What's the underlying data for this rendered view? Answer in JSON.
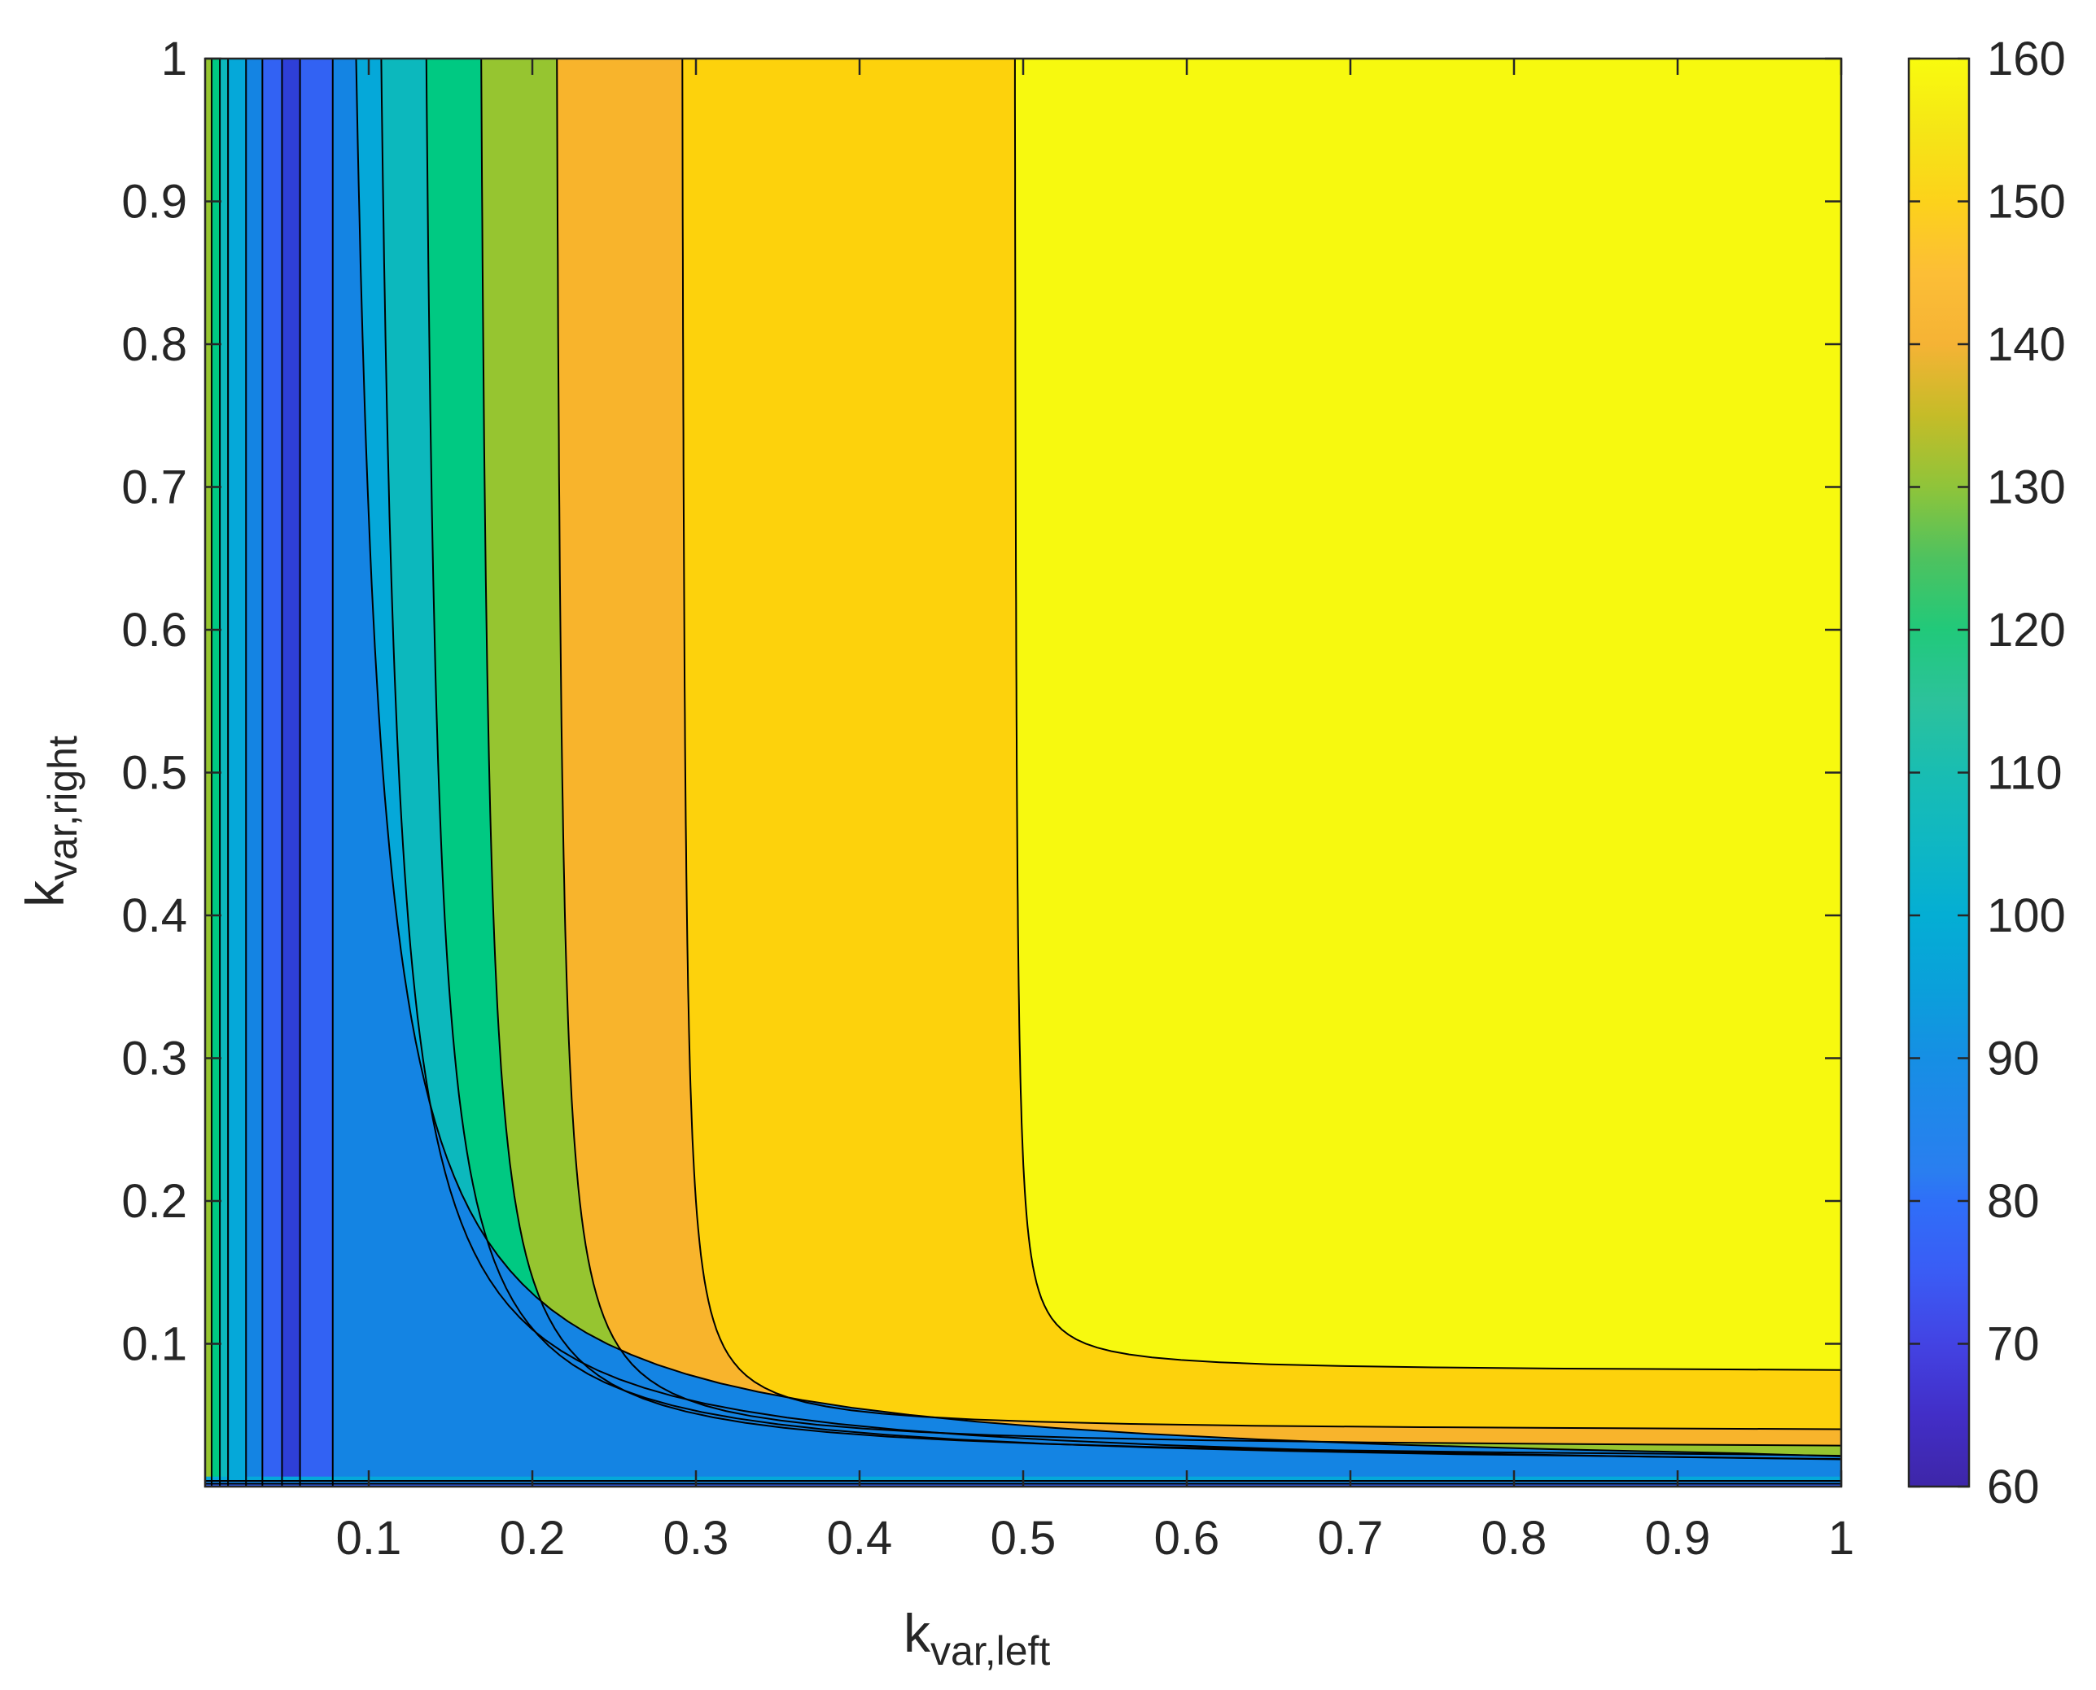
{
  "chart_data": {
    "type": "contour",
    "title": "",
    "xlabel": {
      "base": "k",
      "sub": "var,left"
    },
    "ylabel": {
      "base": "k",
      "sub": "var,right"
    },
    "xlim": [
      0,
      1
    ],
    "ylim": [
      0,
      1
    ],
    "xticks": [
      0.1,
      0.2,
      0.3,
      0.4,
      0.5,
      0.6,
      0.7,
      0.8,
      0.9,
      1
    ],
    "xtick_labels": [
      "0.1",
      "0.2",
      "0.3",
      "0.4",
      "0.5",
      "0.6",
      "0.7",
      "0.8",
      "0.9",
      "1"
    ],
    "yticks": [
      0.1,
      0.2,
      0.3,
      0.4,
      0.5,
      0.6,
      0.7,
      0.8,
      0.9,
      1
    ],
    "ytick_labels": [
      "0.1",
      "0.2",
      "0.3",
      "0.4",
      "0.5",
      "0.6",
      "0.7",
      "0.8",
      "0.9",
      "1"
    ],
    "colorbar": {
      "limits": [
        60,
        160
      ],
      "ticks": [
        60,
        70,
        80,
        90,
        100,
        110,
        120,
        130,
        140,
        150,
        160
      ],
      "tick_labels": [
        "60",
        "70",
        "80",
        "90",
        "100",
        "110",
        "120",
        "130",
        "140",
        "150",
        "160"
      ],
      "colormap": "parula"
    },
    "contour_levels": [
      70,
      80,
      90,
      100,
      110,
      120,
      130,
      140,
      150
    ],
    "vertical_level_positions_at_top": [
      {
        "x": 0.004,
        "value": 130
      },
      {
        "x": 0.009,
        "value": 120
      },
      {
        "x": 0.014,
        "value": 110
      },
      {
        "x": 0.025,
        "value": 100
      },
      {
        "x": 0.035,
        "value": 90
      },
      {
        "x": 0.047,
        "value": 80
      },
      {
        "x": 0.058,
        "value": 70
      },
      {
        "x": 0.078,
        "value": 80
      },
      {
        "x": 0.1,
        "value": 90
      },
      {
        "x": 0.13,
        "value": 100
      },
      {
        "x": 0.167,
        "value": 110
      },
      {
        "x": 0.215,
        "value": 120
      },
      {
        "x": 0.296,
        "value": 130
      },
      {
        "x": 0.499,
        "value": 140
      }
    ],
    "horizontal_asymptotes_at_x1": [
      {
        "y": 0.083,
        "value": 150
      },
      {
        "y": 0.04,
        "value": 140
      },
      {
        "y": 0.026,
        "value": 130
      },
      {
        "y": 0.017,
        "value": 120
      },
      {
        "y": 0.011,
        "value": 110
      },
      {
        "y": 0.007,
        "value": 100
      },
      {
        "y": 0.004,
        "value": 90
      },
      {
        "y": 0.002,
        "value": 80
      }
    ],
    "band_colors": [
      "#2e3fd7",
      "#3262f3",
      "#1484e3",
      "#05a8d9",
      "#0cb8bd",
      "#00c982",
      "#96c530",
      "#f8b42c",
      "#fdd20c",
      "#f7f90f"
    ],
    "colorbar_stops": [
      {
        "v": 60,
        "c": "#3e26a8"
      },
      {
        "v": 65,
        "c": "#422ec7"
      },
      {
        "v": 70,
        "c": "#4343e3"
      },
      {
        "v": 75,
        "c": "#3a5cf5"
      },
      {
        "v": 80,
        "c": "#2f6ff8"
      },
      {
        "v": 82,
        "c": "#2a7ef0"
      },
      {
        "v": 90,
        "c": "#168fe4"
      },
      {
        "v": 95,
        "c": "#0aa0da"
      },
      {
        "v": 100,
        "c": "#04aed4"
      },
      {
        "v": 105,
        "c": "#0fb7c3"
      },
      {
        "v": 110,
        "c": "#19bdb2"
      },
      {
        "v": 115,
        "c": "#2cc29b"
      },
      {
        "v": 120,
        "c": "#21c97a"
      },
      {
        "v": 125,
        "c": "#4ec25f"
      },
      {
        "v": 130,
        "c": "#8fc43a"
      },
      {
        "v": 135,
        "c": "#c5bc28"
      },
      {
        "v": 140,
        "c": "#f5b335"
      },
      {
        "v": 145,
        "c": "#fcbe36"
      },
      {
        "v": 150,
        "c": "#fcd21b"
      },
      {
        "v": 155,
        "c": "#f5e616"
      },
      {
        "v": 160,
        "c": "#f9fb0e"
      }
    ]
  }
}
